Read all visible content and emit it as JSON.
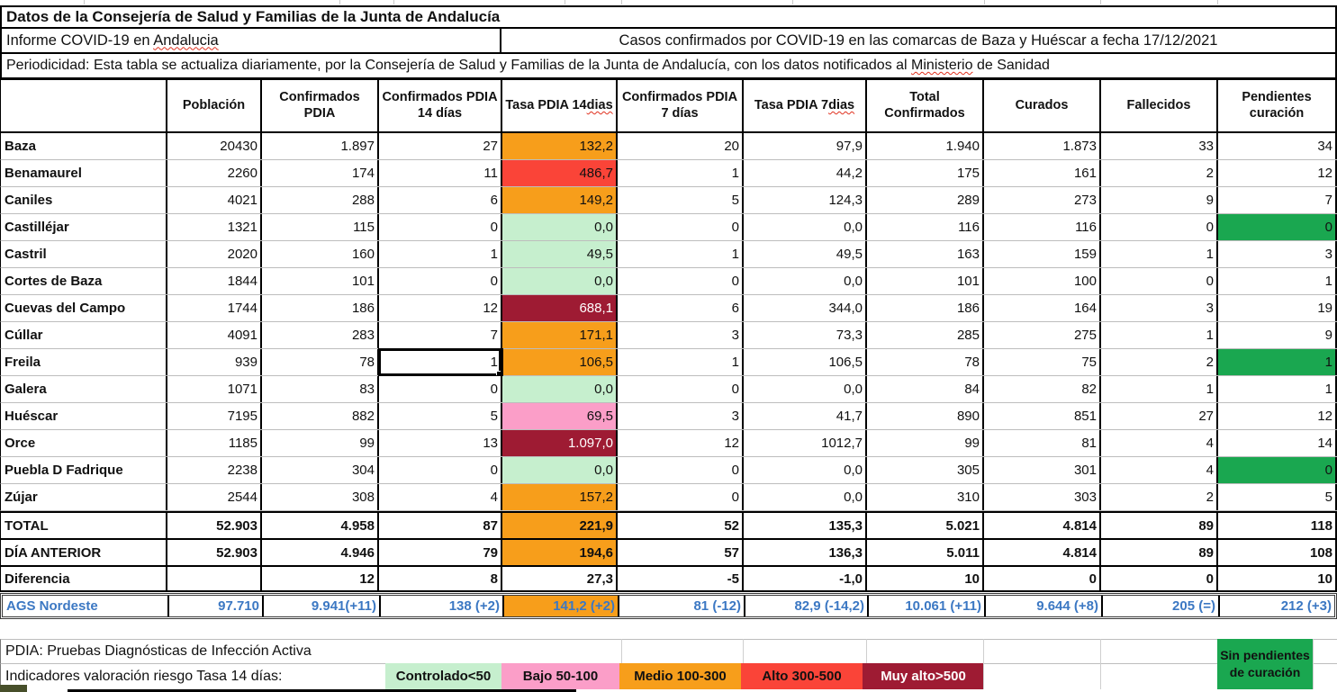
{
  "titles": {
    "main": "Datos de la Consejería de Salud y Familias de la Junta de Andalucía",
    "informe": {
      "text": "Informe COVID-19 en Andalucia",
      "sq": "Andalucia"
    },
    "casos": "Casos confirmados por COVID-19 en las comarcas de Baza y Huéscar a fecha 17/12/2021",
    "periodicidad": {
      "text": "Periodicidad: Esta tabla se actualiza diariamente, por la Consejería de Salud y Familias de la Junta de Andalucía, con los datos notificados al Ministerio de Sanidad",
      "sq": "Ministerio"
    }
  },
  "table": {
    "columns": [
      {
        "text": "Población"
      },
      {
        "text": "Confirmados PDIA"
      },
      {
        "text": "Confirmados PDIA 14 días"
      },
      {
        "text": "Tasa PDIA 14 dias",
        "sq": "dias"
      },
      {
        "text": "Confirmados PDIA 7 días"
      },
      {
        "text": "Tasa PDIA 7 dias",
        "sq": "dias"
      },
      {
        "text": "Total Confirmados"
      },
      {
        "text": "Curados"
      },
      {
        "text": "Fallecidos"
      },
      {
        "text": "Pendientes curación"
      }
    ],
    "rows": [
      {
        "name": "Baza",
        "values": [
          "20430",
          "1.897",
          "27",
          "132,2",
          "20",
          "97,9",
          "1.940",
          "1.873",
          "33",
          "34"
        ],
        "tasa14": "medio"
      },
      {
        "name": "Benamaurel",
        "values": [
          "2260",
          "174",
          "11",
          "486,7",
          "1",
          "44,2",
          "175",
          "161",
          "2",
          "12"
        ],
        "tasa14": "alto"
      },
      {
        "name": "Caniles",
        "values": [
          "4021",
          "288",
          "6",
          "149,2",
          "5",
          "124,3",
          "289",
          "273",
          "9",
          "7"
        ],
        "tasa14": "medio"
      },
      {
        "name": "Castilléjar",
        "values": [
          "1321",
          "115",
          "0",
          "0,0",
          "0",
          "0,0",
          "116",
          "116",
          "0",
          "0"
        ],
        "tasa14": "controlado",
        "pendientes_green": true
      },
      {
        "name": "Castril",
        "values": [
          "2020",
          "160",
          "1",
          "49,5",
          "1",
          "49,5",
          "163",
          "159",
          "1",
          "3"
        ],
        "tasa14": "controlado"
      },
      {
        "name": "Cortes de Baza",
        "values": [
          "1844",
          "101",
          "0",
          "0,0",
          "0",
          "0,0",
          "101",
          "100",
          "0",
          "1"
        ],
        "tasa14": "controlado"
      },
      {
        "name": "Cuevas del Campo",
        "values": [
          "1744",
          "186",
          "12",
          "688,1",
          "6",
          "344,0",
          "186",
          "164",
          "3",
          "19"
        ],
        "tasa14": "muy_alto"
      },
      {
        "name": "Cúllar",
        "values": [
          "4091",
          "283",
          "7",
          "171,1",
          "3",
          "73,3",
          "285",
          "275",
          "1",
          "9"
        ],
        "tasa14": "medio"
      },
      {
        "name": "Freila",
        "values": [
          "939",
          "78",
          "1",
          "106,5",
          "1",
          "106,5",
          "78",
          "75",
          "2",
          "1"
        ],
        "tasa14": "medio",
        "pendientes_green": true,
        "selected": 2
      },
      {
        "name": "Galera",
        "values": [
          "1071",
          "83",
          "0",
          "0,0",
          "0",
          "0,0",
          "84",
          "82",
          "1",
          "1"
        ],
        "tasa14": "controlado"
      },
      {
        "name": "Huéscar",
        "values": [
          "7195",
          "882",
          "5",
          "69,5",
          "3",
          "41,7",
          "890",
          "851",
          "27",
          "12"
        ],
        "tasa14": "bajo"
      },
      {
        "name": "Orce",
        "values": [
          "1185",
          "99",
          "13",
          "1.097,0",
          "12",
          "1012,7",
          "99",
          "81",
          "4",
          "14"
        ],
        "tasa14": "muy_alto"
      },
      {
        "name": "Puebla D Fadrique",
        "values": [
          "2238",
          "304",
          "0",
          "0,0",
          "0",
          "0,0",
          "305",
          "301",
          "4",
          "0"
        ],
        "tasa14": "controlado",
        "pendientes_green": true
      },
      {
        "name": "Zújar",
        "values": [
          "2544",
          "308",
          "4",
          "157,2",
          "0",
          "0,0",
          "310",
          "303",
          "2",
          "5"
        ],
        "tasa14": "medio"
      },
      {
        "name": "TOTAL",
        "values": [
          "52.903",
          "4.958",
          "87",
          "221,9",
          "52",
          "135,3",
          "5.021",
          "4.814",
          "89",
          "118"
        ],
        "tasa14": "medio",
        "cls": "total"
      },
      {
        "name": "DÍA ANTERIOR",
        "values": [
          "52.903",
          "4.946",
          "79",
          "194,6",
          "57",
          "136,3",
          "5.011",
          "4.814",
          "89",
          "108"
        ],
        "tasa14": "medio",
        "cls": "dia"
      },
      {
        "name": "Diferencia",
        "values": [
          "",
          "12",
          "8",
          "27,3",
          "-5",
          "-1,0",
          "10",
          "0",
          "0",
          "10"
        ],
        "tasa14": "none",
        "cls": "dif"
      }
    ],
    "ags": {
      "name": "AGS Nordeste",
      "values": [
        "97.710",
        "9.941(+11)",
        "138 (+2)",
        "141,2 (+2)",
        "81 (-12)",
        "82,9 (-14,2)",
        "10.061 (+11)",
        "9.644 (+8)",
        "205 (=)",
        "212 (+3)"
      ],
      "tasa14": "medio"
    }
  },
  "footer": {
    "pdia_note": "PDIA: Pruebas Diagnósticas de Infección Activa",
    "legend_label": "Indicadores valoración riesgo Tasa 14 días:",
    "legend": [
      {
        "label": "Controlado<50",
        "level": "controlado"
      },
      {
        "label": "Bajo 50-100",
        "level": "bajo"
      },
      {
        "label": "Medio 100-300",
        "level": "medio"
      },
      {
        "label": "Alto 300-500",
        "level": "alto"
      },
      {
        "label": "Muy alto>500",
        "level": "muy_alto"
      }
    ],
    "sin_pendientes": "Sin pendientes de curación"
  },
  "colors": {
    "controlado": "#C6EFCE",
    "bajo": "#FB9EC8",
    "medio": "#F79E1B",
    "alto": "#FA4438",
    "muy_alto": "#9E1B33",
    "pendientes_green": "#1AA750",
    "ags_blue": "#3C78C3"
  }
}
